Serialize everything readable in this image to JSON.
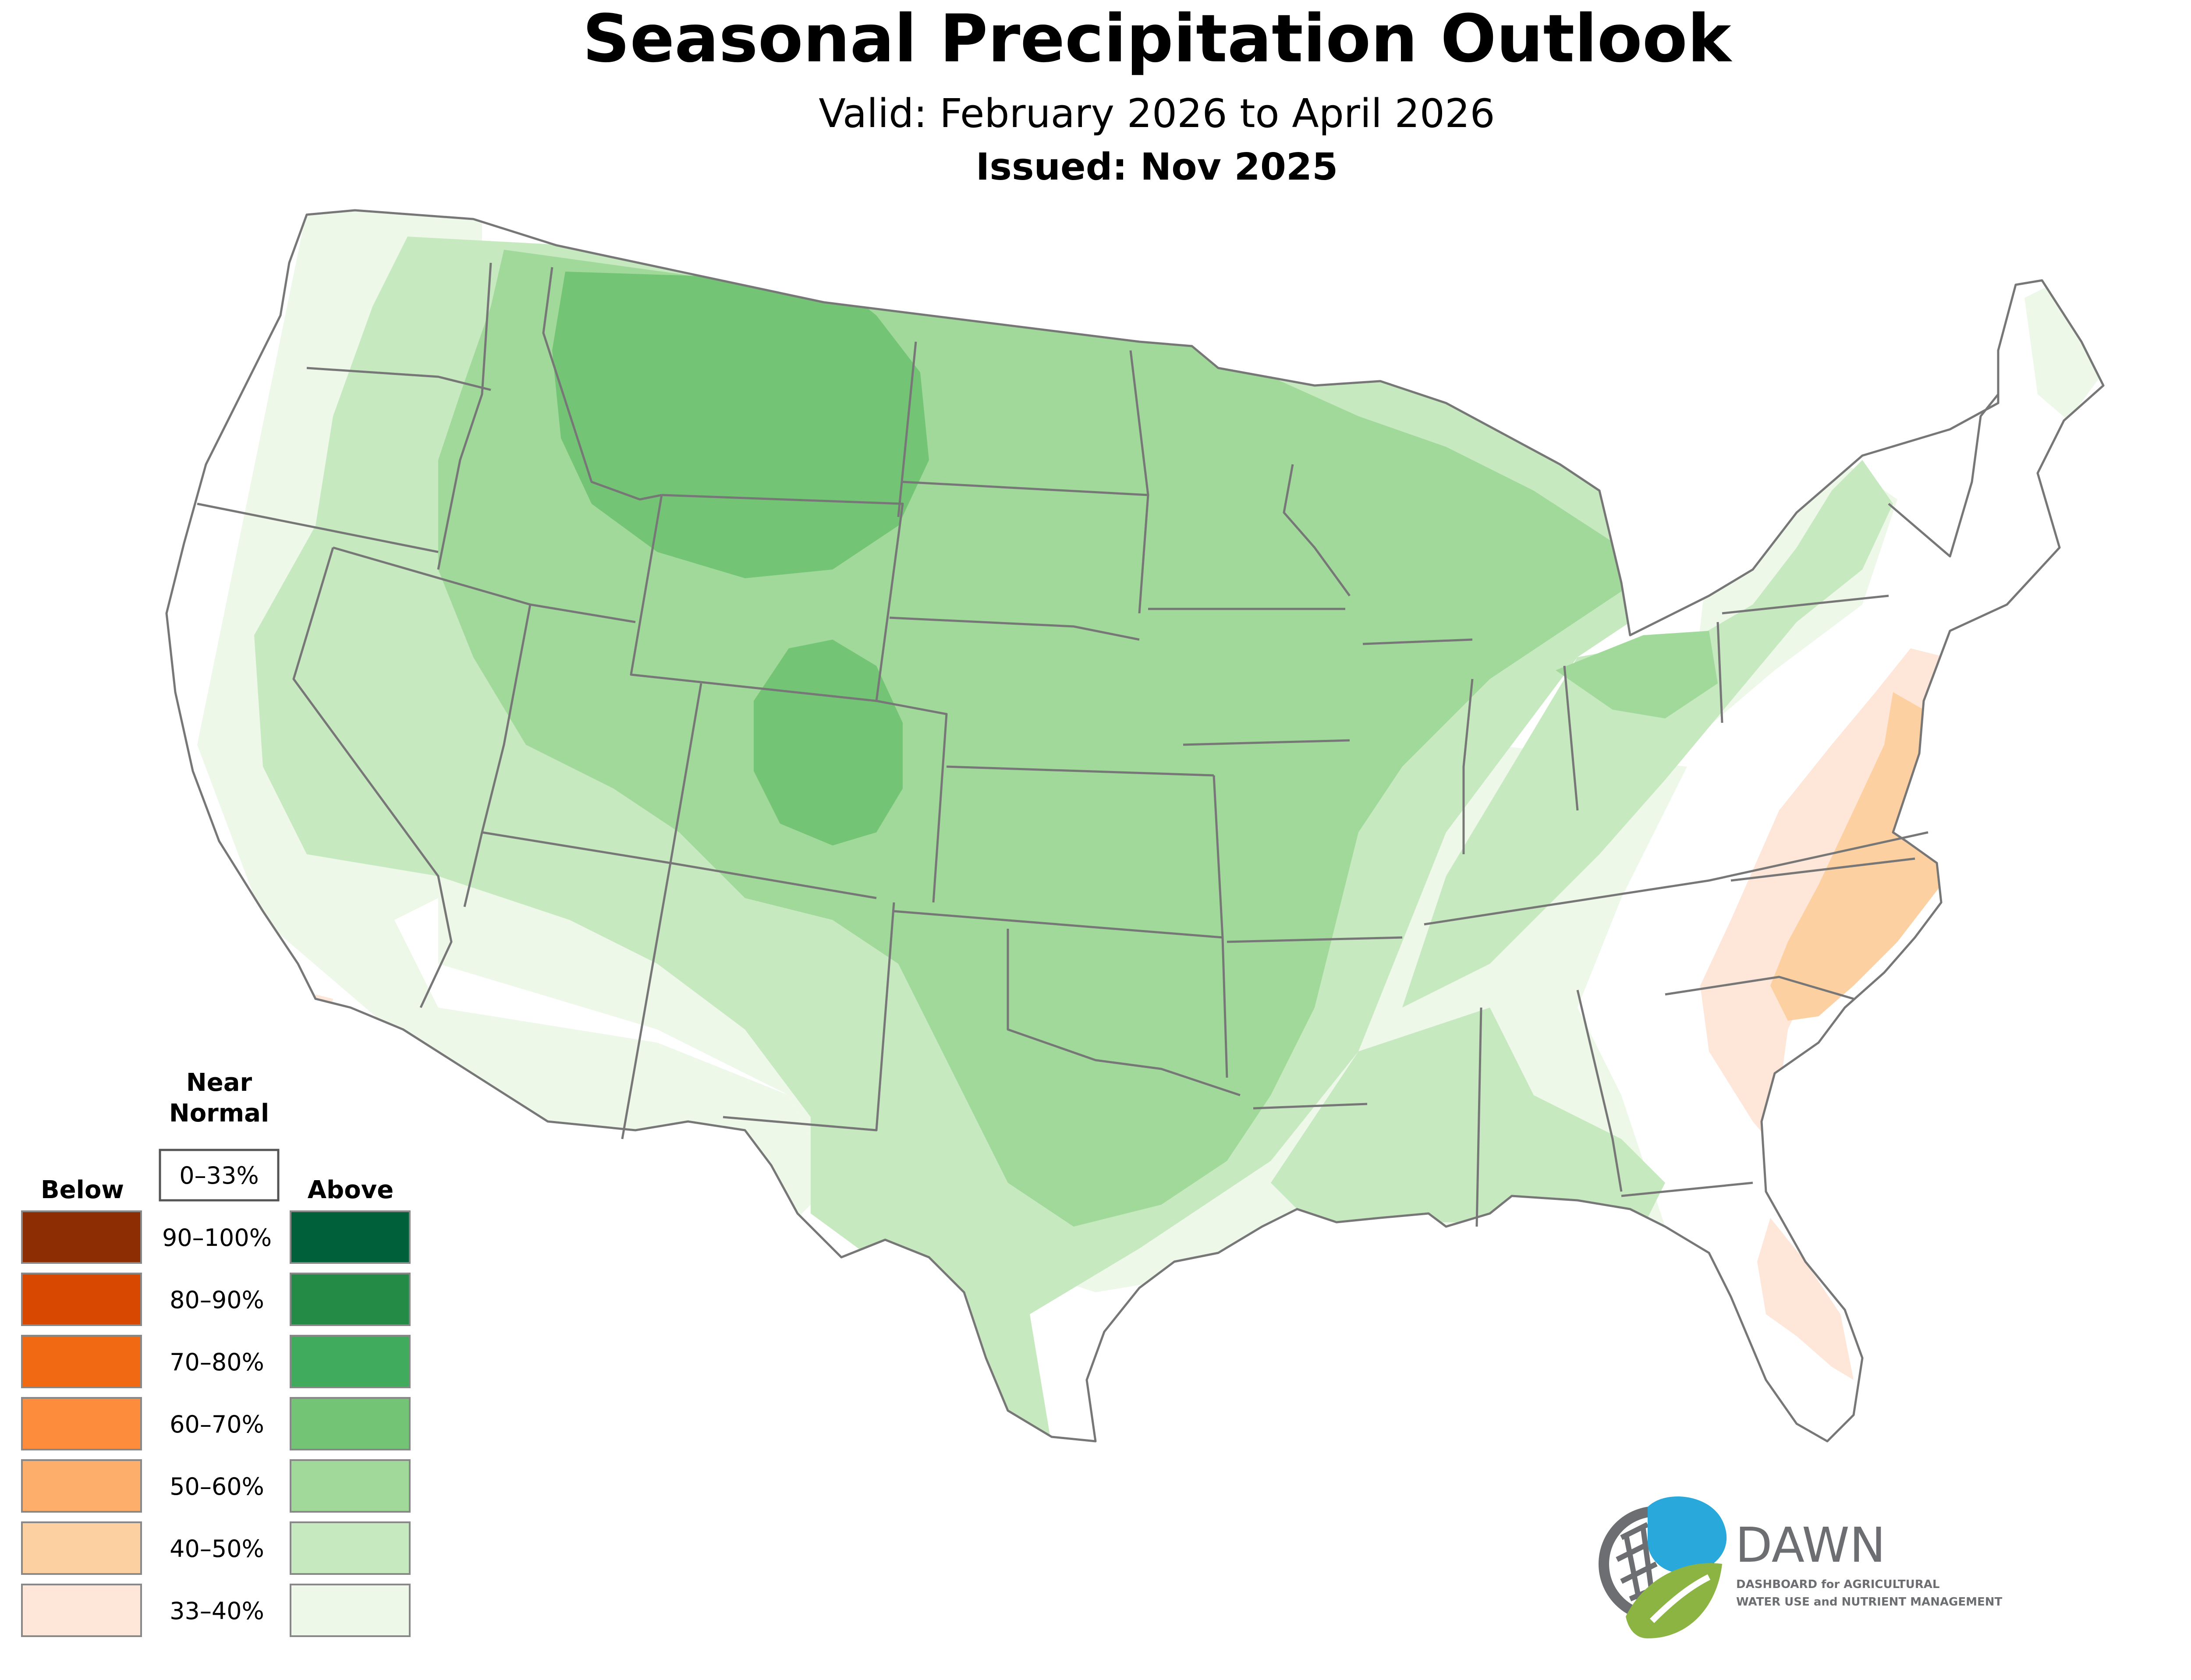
{
  "header": {
    "title": "Seasonal Precipitation Outlook",
    "valid": "Valid: February 2026 to April 2026",
    "issued": "Issued: Nov 2025"
  },
  "legend": {
    "near_normal_line1": "Near",
    "near_normal_line2": "Normal",
    "near_normal_range": "0–33%",
    "below_label": "Below",
    "above_label": "Above",
    "levels": [
      {
        "label": "90–100%",
        "below_color": "#8c2d04",
        "above_color": "#00603a"
      },
      {
        "label": "80–90%",
        "below_color": "#d94801",
        "above_color": "#238b45"
      },
      {
        "label": "70–80%",
        "below_color": "#f16913",
        "above_color": "#41ab5d"
      },
      {
        "label": "60–70%",
        "below_color": "#fd8d3c",
        "above_color": "#74c476"
      },
      {
        "label": "50–60%",
        "below_color": "#fdae6b",
        "above_color": "#a1d99b"
      },
      {
        "label": "40–50%",
        "below_color": "#fdd0a2",
        "above_color": "#c7e9c0"
      },
      {
        "label": "33–40%",
        "below_color": "#fee6d8",
        "above_color": "#edf8e9"
      }
    ]
  },
  "logo": {
    "name": "DAWN",
    "tagline_line1": "DASHBOARD for AGRICULTURAL",
    "tagline_line2": "WATER USE and NUTRIENT MANAGEMENT",
    "blue": "#29a8dc",
    "green": "#8bb443",
    "gray": "#6d6e71"
  },
  "map": {
    "region": "Contiguous United States",
    "outline_color": "#777777",
    "categories_shown": [
      "33–40% Below",
      "40–50% Below",
      "33–40% Above",
      "40–50% Above",
      "50–60% Above",
      "60–70% Above"
    ]
  }
}
